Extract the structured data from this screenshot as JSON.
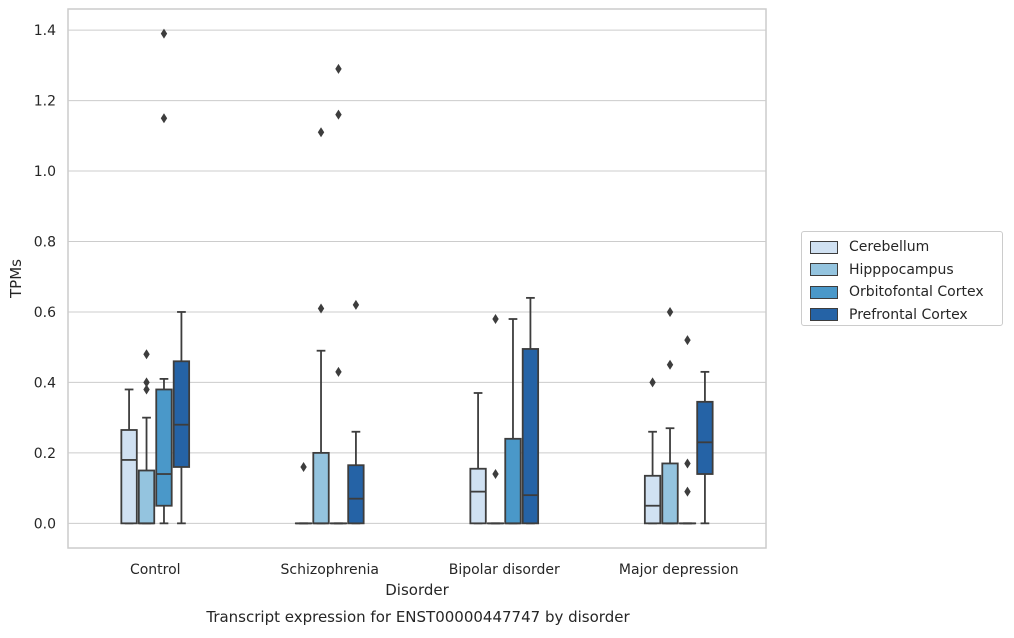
{
  "chart_data": {
    "type": "box",
    "xlabel": "Disorder",
    "ylabel": "TPMs",
    "caption": "Transcript expression for ENST00000447747 by disorder",
    "ylim": [
      -0.07,
      1.46
    ],
    "yticks": [
      0.0,
      0.2,
      0.4,
      0.6,
      0.8,
      1.0,
      1.2,
      1.4
    ],
    "ytick_labels": [
      "0.0",
      "0.2",
      "0.4",
      "0.6",
      "0.8",
      "1.0",
      "1.2",
      "1.4"
    ],
    "grid": "horizontal",
    "legend_position": "right",
    "categories": [
      "Control",
      "Schizophrenia",
      "Bipolar disorder",
      "Major depression"
    ],
    "series": [
      {
        "name": "Cerebellum",
        "color": "#d0e1f2",
        "boxes": [
          {
            "whislo": 0.0,
            "q1": 0.0,
            "med": 0.18,
            "q3": 0.265,
            "whishi": 0.38,
            "fliers": []
          },
          {
            "whislo": 0.0,
            "q1": 0.0,
            "med": 0.0,
            "q3": 0.0,
            "whishi": 0.0,
            "fliers": [
              0.16
            ]
          },
          {
            "whislo": 0.0,
            "q1": 0.0,
            "med": 0.09,
            "q3": 0.155,
            "whishi": 0.37,
            "fliers": []
          },
          {
            "whislo": 0.0,
            "q1": 0.0,
            "med": 0.05,
            "q3": 0.135,
            "whishi": 0.26,
            "fliers": [
              0.4
            ]
          }
        ]
      },
      {
        "name": "Hipppocampus",
        "color": "#94c4df",
        "boxes": [
          {
            "whislo": 0.0,
            "q1": 0.0,
            "med": 0.0,
            "q3": 0.15,
            "whishi": 0.3,
            "fliers": [
              0.38,
              0.4,
              0.48
            ]
          },
          {
            "whislo": 0.0,
            "q1": 0.0,
            "med": 0.0,
            "q3": 0.2,
            "whishi": 0.49,
            "fliers": [
              0.61,
              1.11
            ]
          },
          {
            "whislo": 0.0,
            "q1": 0.0,
            "med": 0.0,
            "q3": 0.0,
            "whishi": 0.0,
            "fliers": [
              0.14,
              0.58
            ]
          },
          {
            "whislo": 0.0,
            "q1": 0.0,
            "med": 0.0,
            "q3": 0.17,
            "whishi": 0.27,
            "fliers": [
              0.45,
              0.6
            ]
          }
        ]
      },
      {
        "name": "Orbitofontal Cortex",
        "color": "#4a98c9",
        "boxes": [
          {
            "whislo": 0.0,
            "q1": 0.05,
            "med": 0.14,
            "q3": 0.38,
            "whishi": 0.41,
            "fliers": [
              1.15,
              1.39
            ]
          },
          {
            "whislo": 0.0,
            "q1": 0.0,
            "med": 0.0,
            "q3": 0.0,
            "whishi": 0.0,
            "fliers": [
              0.43,
              1.16,
              1.29
            ]
          },
          {
            "whislo": 0.0,
            "q1": 0.0,
            "med": 0.0,
            "q3": 0.24,
            "whishi": 0.58,
            "fliers": []
          },
          {
            "whislo": 0.0,
            "q1": 0.0,
            "med": 0.0,
            "q3": 0.0,
            "whishi": 0.0,
            "fliers": [
              0.09,
              0.17,
              0.52
            ]
          }
        ]
      },
      {
        "name": "Prefrontal Cortex",
        "color": "#2563a6",
        "boxes": [
          {
            "whislo": 0.0,
            "q1": 0.16,
            "med": 0.28,
            "q3": 0.46,
            "whishi": 0.6,
            "fliers": []
          },
          {
            "whislo": 0.0,
            "q1": 0.0,
            "med": 0.07,
            "q3": 0.165,
            "whishi": 0.26,
            "fliers": [
              0.62
            ]
          },
          {
            "whislo": 0.0,
            "q1": 0.0,
            "med": 0.08,
            "q3": 0.495,
            "whishi": 0.64,
            "fliers": []
          },
          {
            "whislo": 0.0,
            "q1": 0.14,
            "med": 0.23,
            "q3": 0.345,
            "whishi": 0.43,
            "fliers": []
          }
        ]
      }
    ]
  }
}
